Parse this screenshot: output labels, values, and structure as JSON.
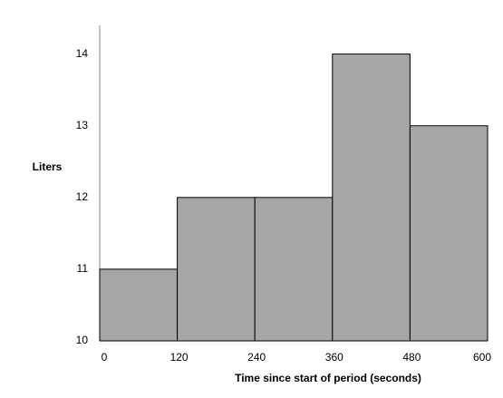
{
  "chart_data": {
    "type": "histogram",
    "y_label": "Liters",
    "x_label": "Time since start of period (seconds)",
    "bins": [
      0,
      120,
      240,
      360,
      480,
      600
    ],
    "values": [
      11,
      12,
      12,
      14,
      13
    ],
    "color": "#a6a6a6",
    "xlim": [
      0,
      600
    ],
    "xticks": [
      0,
      120,
      240,
      360,
      480,
      600
    ],
    "ylim": [
      10,
      14.4
    ],
    "yticks": [
      10,
      11,
      12,
      13,
      14
    ],
    "grid": false
  }
}
